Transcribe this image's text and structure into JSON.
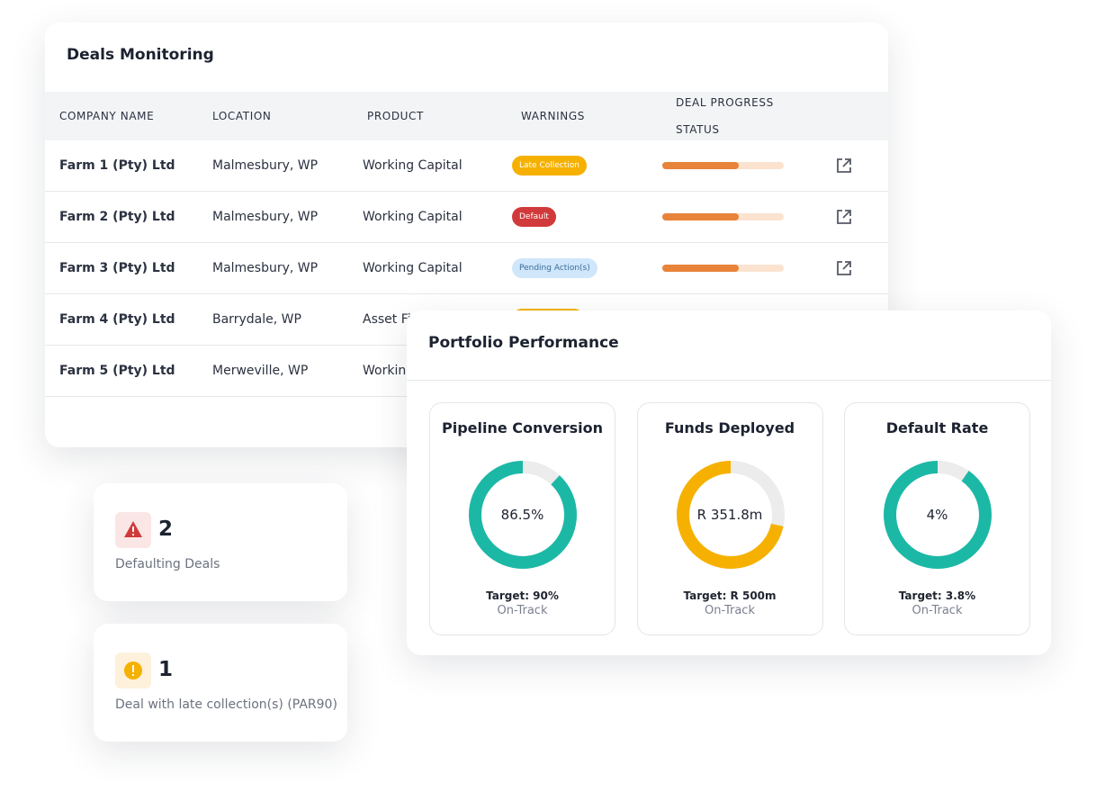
{
  "deals": {
    "title": "Deals Monitoring",
    "columns": [
      "COMPANY NAME",
      "LOCATION",
      "PRODUCT",
      "WARNINGS",
      "DEAL PROGRESS",
      "STATUS"
    ],
    "rows": [
      {
        "company": "Farm 1 (Pty) Ltd",
        "location": "Malmesbury, WP",
        "product": "Working Capital",
        "warning": "Late Collection"
      },
      {
        "company": "Farm 2 (Pty) Ltd",
        "location": "Malmesbury, WP",
        "product": "Working Capital",
        "warning": "Default"
      },
      {
        "company": "Farm 3 (Pty) Ltd",
        "location": "Malmesbury, WP",
        "product": "Working Capital",
        "warning": "Pending Action(s)"
      },
      {
        "company": "Farm 4 (Pty) Ltd",
        "location": "Barrydale, WP",
        "product": "Asset Finance"
      },
      {
        "company": "Farm 5 (Pty) Ltd",
        "location": "Merweville, WP",
        "product": "Working Capital"
      }
    ]
  },
  "stats": [
    {
      "value": 2,
      "label": "Defaulting Deals"
    },
    {
      "value": 1,
      "label": "Deal with late collection(s) (PAR90)"
    }
  ],
  "portfolio": {
    "title": "Portfolio Performance",
    "cards": [
      {
        "title": "Pipeline Conversion",
        "value": "86.5%",
        "target": "Target: 90%",
        "status": "On-Track"
      },
      {
        "title": "Funds Deployed",
        "value": "R 351.8m",
        "target": "Target: R 500m",
        "status": "On-Track"
      },
      {
        "title": "Default Rate",
        "value": "4%",
        "target": "Target: 3.8%",
        "status": "On-Track"
      }
    ]
  }
}
